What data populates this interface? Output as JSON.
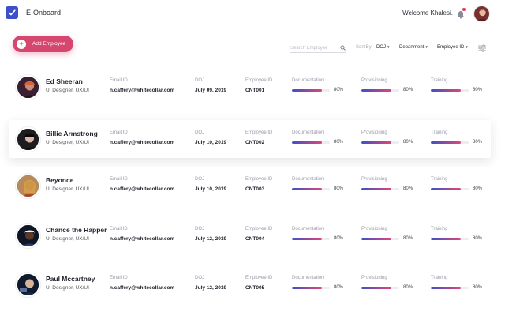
{
  "app": {
    "title": "E-Onboard",
    "welcome": "Welcome Khalesi."
  },
  "toolbar": {
    "add_label": "Add Employee",
    "search_placeholder": "Search Employee",
    "sort_by_label": "Sort By",
    "sort_options": [
      "DOJ",
      "Department",
      "Employee ID"
    ]
  },
  "labels": {
    "email": "Email ID",
    "doj": "DOJ",
    "employee_id": "Employee ID",
    "documentation": "Documentation",
    "provisioning": "Provisioning",
    "training": "Training"
  },
  "employees": [
    {
      "name": "Ed Sheeran",
      "role": "UI Designer, UX/UI",
      "email": "n.caffery@whitecollar.com",
      "doj": "July 09, 2019",
      "id": "CNT001",
      "documentation": 80,
      "provisioning": 80,
      "training": 80
    },
    {
      "name": "Billie Armstrong",
      "role": "UI Designer, UX/UI",
      "email": "n.caffery@whitecollar.com",
      "doj": "July 10, 2019",
      "id": "CNT002",
      "documentation": 80,
      "provisioning": 80,
      "training": 80
    },
    {
      "name": "Beyonce",
      "role": "UI Designer, UX/UI",
      "email": "n.caffery@whitecollar.com",
      "doj": "July 10, 2019",
      "id": "CNT003",
      "documentation": 80,
      "provisioning": 80,
      "training": 80
    },
    {
      "name": "Chance the Rapper",
      "role": "UI Designer, UX/UI",
      "email": "n.caffery@whitecollar.com",
      "doj": "July 12, 2019",
      "id": "CNT004",
      "documentation": 80,
      "provisioning": 80,
      "training": 80
    },
    {
      "name": "Paul Mccartney",
      "role": "UI Designer, UX/UI",
      "email": "n.caffery@whitecollar.com",
      "doj": "July 12, 2019",
      "id": "CNT005",
      "documentation": 80,
      "provisioning": 80,
      "training": 80
    }
  ],
  "pct_suffix": "%",
  "colors": {
    "brand": "#3d4fc9",
    "accent": "#d6476f",
    "progress_start": "#3d4fc9",
    "progress_end": "#e0457a"
  }
}
